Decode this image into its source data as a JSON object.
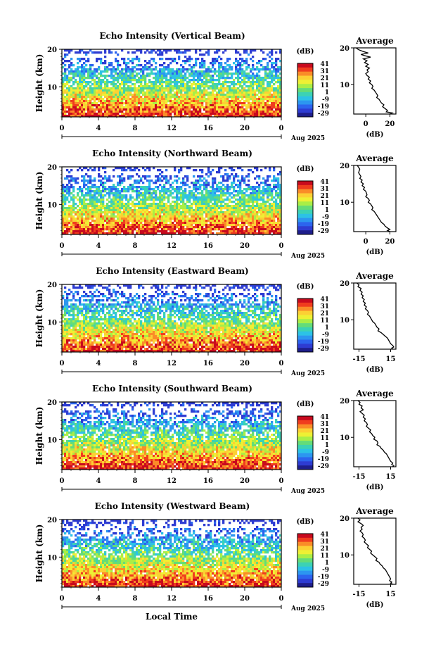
{
  "xlabel": "Local Time",
  "date_label": "Aug 2025",
  "colorbar": {
    "unit": "(dB)",
    "labels": [
      "41",
      "31",
      "21",
      "11",
      "1",
      "-9",
      "-19",
      "-29"
    ],
    "colors": [
      "#c80a1e",
      "#f03c1e",
      "#fa8c28",
      "#fcd034",
      "#eef034",
      "#aaee46",
      "#64dc78",
      "#3cd2b4",
      "#2cc2e6",
      "#2c96f0",
      "#2c64ee",
      "#2e3cd2",
      "#1e1e8c"
    ]
  },
  "profile_title": "Average",
  "profile_xlabel": "(dB)",
  "chart_data": [
    {
      "type": "heatmap",
      "title": "Echo Intensity (Vertical Beam)",
      "ylabel": "Height (km)",
      "xlabel": "Local Time",
      "x_ticks": [
        "0",
        "4",
        "8",
        "12",
        "16",
        "20",
        "0"
      ],
      "y_ticks": [
        "20",
        "10"
      ],
      "xlim": [
        0,
        24
      ],
      "ylim": [
        2,
        20
      ],
      "profile": {
        "title": "Average",
        "xlabel": "(dB)",
        "xticks": [
          "0",
          "20"
        ],
        "xlim": [
          -10,
          25
        ],
        "yticks": [
          "20",
          "10"
        ],
        "points": [
          [
            -8,
            20
          ],
          [
            -6,
            19.5
          ],
          [
            -2,
            19
          ],
          [
            2,
            18.6
          ],
          [
            -4,
            18.2
          ],
          [
            0,
            17.8
          ],
          [
            4,
            17.5
          ],
          [
            -2,
            17
          ],
          [
            1,
            16.5
          ],
          [
            -1,
            16
          ],
          [
            2,
            15.5
          ],
          [
            0,
            15
          ],
          [
            3,
            14.5
          ],
          [
            1,
            14
          ],
          [
            2,
            13.5
          ],
          [
            0,
            13
          ],
          [
            1,
            12.5
          ],
          [
            3,
            12
          ],
          [
            2,
            11.5
          ],
          [
            4,
            11
          ],
          [
            3,
            10.5
          ],
          [
            5,
            10
          ],
          [
            6,
            9.5
          ],
          [
            5,
            9
          ],
          [
            7,
            8.5
          ],
          [
            8,
            8
          ],
          [
            9,
            7.5
          ],
          [
            10,
            7
          ],
          [
            9,
            6.5
          ],
          [
            11,
            6
          ],
          [
            12,
            5.5
          ],
          [
            13,
            5
          ],
          [
            15,
            4.5
          ],
          [
            14,
            4
          ],
          [
            16,
            3.5
          ],
          [
            18,
            3
          ],
          [
            17,
            2.6
          ],
          [
            22,
            2.3
          ],
          [
            20,
            2
          ]
        ]
      }
    },
    {
      "type": "heatmap",
      "title": "Echo Intensity (Northward Beam)",
      "ylabel": "Height (km)",
      "xlabel": "Local Time",
      "x_ticks": [
        "0",
        "4",
        "8",
        "12",
        "16",
        "20",
        "0"
      ],
      "y_ticks": [
        "20",
        "10"
      ],
      "xlim": [
        0,
        24
      ],
      "ylim": [
        2,
        20
      ],
      "profile": {
        "title": "Average",
        "xlabel": "(dB)",
        "xticks": [
          "0",
          "20"
        ],
        "xlim": [
          -10,
          25
        ],
        "yticks": [
          "20",
          "10"
        ],
        "points": [
          [
            -7,
            20
          ],
          [
            -5,
            19
          ],
          [
            -6,
            18
          ],
          [
            -4,
            17
          ],
          [
            -5,
            16.5
          ],
          [
            -3,
            16
          ],
          [
            -4,
            15.5
          ],
          [
            -2,
            15
          ],
          [
            -3,
            14.5
          ],
          [
            -1,
            14
          ],
          [
            -2,
            13.5
          ],
          [
            0,
            13
          ],
          [
            1,
            12
          ],
          [
            0,
            11.5
          ],
          [
            2,
            11
          ],
          [
            3,
            10.5
          ],
          [
            2,
            10
          ],
          [
            4,
            9.5
          ],
          [
            5,
            9
          ],
          [
            6,
            8.5
          ],
          [
            5,
            8
          ],
          [
            7,
            7.5
          ],
          [
            8,
            7
          ],
          [
            9,
            6.5
          ],
          [
            10,
            6
          ],
          [
            11,
            5.5
          ],
          [
            12,
            5
          ],
          [
            13,
            4.5
          ],
          [
            15,
            4
          ],
          [
            16,
            3.5
          ],
          [
            18,
            3
          ],
          [
            20,
            2.6
          ],
          [
            18,
            2.3
          ],
          [
            20,
            2
          ]
        ]
      }
    },
    {
      "type": "heatmap",
      "title": "Echo Intensity (Eastward Beam)",
      "ylabel": "Height (km)",
      "xlabel": "Local Time",
      "x_ticks": [
        "0",
        "4",
        "8",
        "12",
        "16",
        "20",
        "0"
      ],
      "y_ticks": [
        "20",
        "10"
      ],
      "xlim": [
        0,
        24
      ],
      "ylim": [
        2,
        20
      ],
      "profile": {
        "title": "Average",
        "xlabel": "(dB)",
        "xticks": [
          "-15",
          "15"
        ],
        "xlim": [
          -20,
          20
        ],
        "yticks": [
          "20",
          "10"
        ],
        "points": [
          [
            -17,
            20
          ],
          [
            -15,
            19.5
          ],
          [
            -16,
            19
          ],
          [
            -13,
            18.5
          ],
          [
            -14,
            18
          ],
          [
            -12,
            17.5
          ],
          [
            -13,
            17
          ],
          [
            -11,
            16.5
          ],
          [
            -12,
            16
          ],
          [
            -10,
            15.5
          ],
          [
            -11,
            15
          ],
          [
            -9,
            14.5
          ],
          [
            -10,
            14
          ],
          [
            -8,
            13.5
          ],
          [
            -9,
            13
          ],
          [
            -7,
            12.5
          ],
          [
            -6,
            12
          ],
          [
            -7,
            11.5
          ],
          [
            -5,
            11
          ],
          [
            -4,
            10.5
          ],
          [
            -3,
            10
          ],
          [
            -2,
            9.5
          ],
          [
            0,
            9
          ],
          [
            1,
            8.5
          ],
          [
            2,
            8
          ],
          [
            4,
            7.5
          ],
          [
            3,
            7
          ],
          [
            6,
            6.5
          ],
          [
            8,
            6
          ],
          [
            10,
            5.5
          ],
          [
            12,
            5
          ],
          [
            13,
            4.5
          ],
          [
            14,
            4
          ],
          [
            15,
            3.5
          ],
          [
            17,
            3
          ],
          [
            18,
            2.6
          ],
          [
            16,
            2.3
          ],
          [
            17,
            2
          ]
        ]
      }
    },
    {
      "type": "heatmap",
      "title": "Echo Intensity (Southward Beam)",
      "ylabel": "Height (km)",
      "xlabel": "Local Time",
      "x_ticks": [
        "0",
        "4",
        "8",
        "12",
        "16",
        "20",
        "0"
      ],
      "y_ticks": [
        "20",
        "10"
      ],
      "xlim": [
        0,
        24
      ],
      "ylim": [
        2,
        20
      ],
      "profile": {
        "title": "Average",
        "xlabel": "(dB)",
        "xticks": [
          "-15",
          "15"
        ],
        "xlim": [
          -20,
          20
        ],
        "yticks": [
          "20",
          "10"
        ],
        "points": [
          [
            -16,
            20
          ],
          [
            -14,
            19.5
          ],
          [
            -15,
            19
          ],
          [
            -12,
            18.5
          ],
          [
            -13,
            18
          ],
          [
            -11,
            17.5
          ],
          [
            -14,
            17
          ],
          [
            -12,
            16.5
          ],
          [
            -10,
            16
          ],
          [
            -11,
            15.5
          ],
          [
            -9,
            15
          ],
          [
            -10,
            14.5
          ],
          [
            -8,
            14
          ],
          [
            -7,
            13.5
          ],
          [
            -8,
            13
          ],
          [
            -6,
            12.5
          ],
          [
            -4,
            12
          ],
          [
            -5,
            11.5
          ],
          [
            -3,
            11
          ],
          [
            -2,
            10.5
          ],
          [
            0,
            10
          ],
          [
            -1,
            9.5
          ],
          [
            2,
            9
          ],
          [
            3,
            8.5
          ],
          [
            2,
            8
          ],
          [
            5,
            7.5
          ],
          [
            6,
            7
          ],
          [
            8,
            6.5
          ],
          [
            9,
            6
          ],
          [
            11,
            5.5
          ],
          [
            12,
            5
          ],
          [
            13,
            4.5
          ],
          [
            14,
            4
          ],
          [
            15,
            3.5
          ],
          [
            17,
            3
          ],
          [
            16,
            2.6
          ],
          [
            18,
            2.3
          ],
          [
            17,
            2
          ]
        ]
      }
    },
    {
      "type": "heatmap",
      "title": "Echo Intensity (Westward Beam)",
      "ylabel": "Height (km)",
      "xlabel": "Local Time",
      "x_ticks": [
        "0",
        "4",
        "8",
        "12",
        "16",
        "20",
        "0"
      ],
      "y_ticks": [
        "20",
        "10"
      ],
      "xlim": [
        0,
        24
      ],
      "ylim": [
        2,
        20
      ],
      "profile": {
        "title": "Average",
        "xlabel": "(dB)",
        "xticks": [
          "-15",
          "15"
        ],
        "xlim": [
          -20,
          20
        ],
        "yticks": [
          "20",
          "10"
        ],
        "points": [
          [
            -16,
            20
          ],
          [
            -14,
            19.5
          ],
          [
            -16,
            19
          ],
          [
            -13,
            18.5
          ],
          [
            -11,
            18
          ],
          [
            -13,
            17.5
          ],
          [
            -12,
            17
          ],
          [
            -14,
            16.5
          ],
          [
            -12,
            16
          ],
          [
            -11,
            15.5
          ],
          [
            -12,
            15
          ],
          [
            -10,
            14.5
          ],
          [
            -9,
            14
          ],
          [
            -10,
            13.5
          ],
          [
            -8,
            13
          ],
          [
            -6,
            12.5
          ],
          [
            -7,
            12
          ],
          [
            -5,
            11.5
          ],
          [
            -3,
            11
          ],
          [
            -4,
            10.5
          ],
          [
            -2,
            10
          ],
          [
            0,
            9.5
          ],
          [
            2,
            9
          ],
          [
            1,
            8.5
          ],
          [
            4,
            8
          ],
          [
            5,
            7.5
          ],
          [
            7,
            7
          ],
          [
            8,
            6.5
          ],
          [
            10,
            6
          ],
          [
            11,
            5.5
          ],
          [
            12,
            5
          ],
          [
            13,
            4.5
          ],
          [
            14,
            4
          ],
          [
            15,
            3.5
          ],
          [
            14,
            3
          ],
          [
            16,
            2.6
          ],
          [
            15,
            2.3
          ],
          [
            17,
            2
          ]
        ]
      }
    }
  ]
}
